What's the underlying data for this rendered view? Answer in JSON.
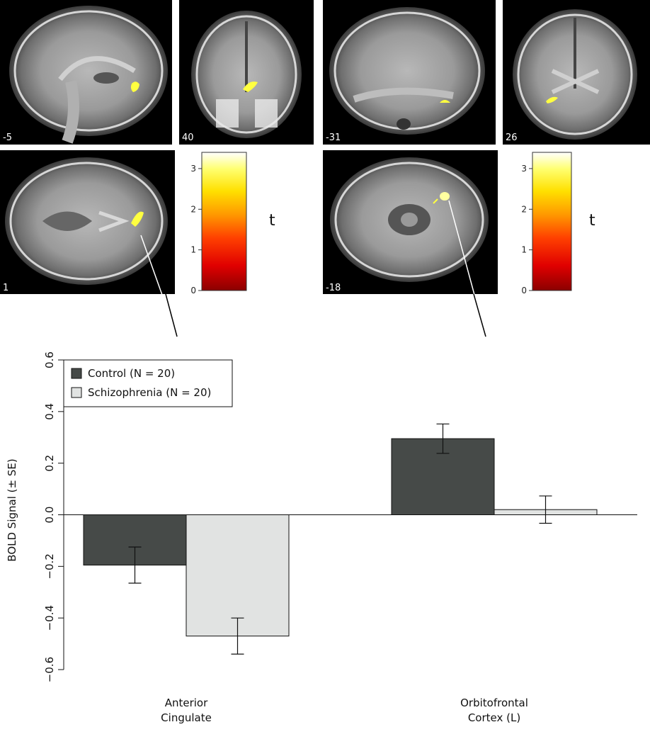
{
  "panels": {
    "slices": [
      {
        "label": "-5",
        "view": "sagittal"
      },
      {
        "label": "40",
        "view": "coronal"
      },
      {
        "label": "-31",
        "view": "sagittal"
      },
      {
        "label": "26",
        "view": "coronal"
      },
      {
        "label": "1",
        "view": "axial"
      },
      {
        "label": "-18",
        "view": "axial"
      }
    ],
    "colorbars": [
      {
        "title": "t",
        "ticks": [
          "0",
          "1",
          "2",
          "3"
        ],
        "min": 0,
        "max": 3.4
      },
      {
        "title": "t",
        "ticks": [
          "0",
          "1",
          "2",
          "3"
        ],
        "min": 0,
        "max": 3.4
      }
    ],
    "colormap": [
      "#8b0000",
      "#e00000",
      "#ff4000",
      "#ff9900",
      "#ffe000",
      "#ffff60",
      "#ffffff"
    ],
    "activation_color": "#ffff40"
  },
  "chart_data": {
    "type": "bar",
    "categories": [
      {
        "line1": "Anterior",
        "line2": "Cingulate"
      },
      {
        "line1": "Orbitofrontal",
        "line2": "Cortex (L)"
      }
    ],
    "series": [
      {
        "name": "Control (N = 20)",
        "color": "#464a48",
        "values": [
          -0.195,
          0.295
        ],
        "errors": [
          0.07,
          0.057
        ]
      },
      {
        "name": "Schizophrenia (N = 20)",
        "color": "#e1e3e2",
        "values": [
          -0.47,
          0.02
        ],
        "errors": [
          0.07,
          0.053
        ]
      }
    ],
    "ylabel": "BOLD Signal (± SE)",
    "ylim": [
      -0.6,
      0.6
    ],
    "yticks": [
      "0.6",
      "0.4",
      "0.2",
      "0.0",
      "−0.2",
      "−0.4",
      "−0.6"
    ],
    "ytick_values": [
      0.6,
      0.4,
      0.2,
      0.0,
      -0.2,
      -0.4,
      -0.6
    ],
    "legend_position": "top-left",
    "grid": false
  }
}
